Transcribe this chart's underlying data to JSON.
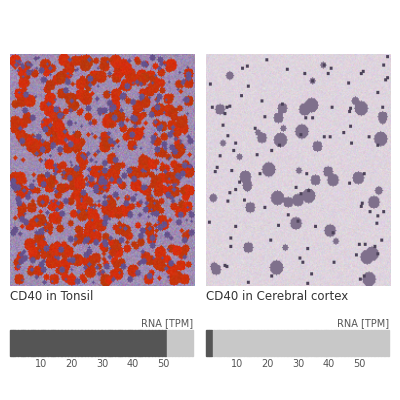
{
  "title_left": "CD40 in Tonsil",
  "title_right": "CD40 in Cerebral cortex",
  "rna_label": "RNA [TPM]",
  "tick_labels": [
    10,
    20,
    30,
    40,
    50
  ],
  "n_bars": 55,
  "tonsil_filled": 47,
  "cortex_filled": 2,
  "bar_dark_color": "#555555",
  "bar_light_color": "#c8c8c8",
  "background_color": "#ffffff",
  "title_fontsize": 8.5,
  "rna_fontsize": 7,
  "tick_fontsize": 7,
  "fig_width": 4.0,
  "fig_height": 4.0,
  "tonsil_base_r": 0.62,
  "tonsil_base_g": 0.55,
  "tonsil_base_b": 0.7,
  "cortex_base_r": 0.87,
  "cortex_base_g": 0.83,
  "cortex_base_b": 0.87
}
